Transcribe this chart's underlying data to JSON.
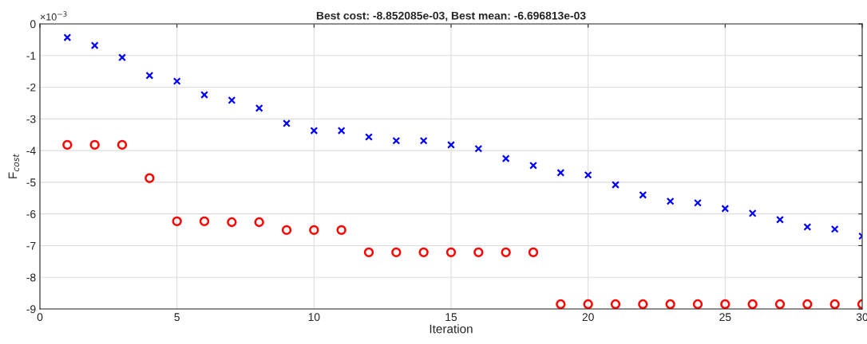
{
  "chart_data": {
    "type": "scatter",
    "title": "Best cost: -8.852085e-03, Best mean: -6.696813e-03",
    "xlabel": "Iteration",
    "ylabel": "F$_{cost}$",
    "annotations": [
      "×10$^{−3}$"
    ],
    "x": [
      1,
      2,
      3,
      4,
      5,
      6,
      7,
      8,
      9,
      10,
      11,
      12,
      13,
      14,
      15,
      16,
      17,
      18,
      19,
      20,
      21,
      22,
      23,
      24,
      25,
      26,
      27,
      28,
      29,
      30
    ],
    "series": [
      {
        "color": "#0000ff",
        "marker": "cross",
        "values": [
          -0.43,
          -0.68,
          -1.06,
          -1.63,
          -1.81,
          -2.24,
          -2.41,
          -2.66,
          -3.14,
          -3.37,
          -3.37,
          -3.57,
          -3.69,
          -3.69,
          -3.82,
          -3.94,
          -4.25,
          -4.47,
          -4.7,
          -4.77,
          -5.08,
          -5.4,
          -5.6,
          -5.65,
          -5.83,
          -5.98,
          -6.18,
          -6.41,
          -6.48,
          -6.7
        ]
      },
      {
        "color": "#ff0000",
        "marker": "circle",
        "values": [
          -3.82,
          -3.82,
          -3.82,
          -4.87,
          -6.23,
          -6.23,
          -6.26,
          -6.26,
          -6.51,
          -6.51,
          -6.51,
          -7.21,
          -7.21,
          -7.21,
          -7.21,
          -7.21,
          -7.21,
          -7.21,
          -8.85,
          -8.85,
          -8.85,
          -8.85,
          -8.85,
          -8.85,
          -8.85,
          -8.85,
          -8.85,
          -8.85,
          -8.85,
          -8.85
        ]
      }
    ],
    "xlim": [
      0,
      30
    ],
    "xticks": [
      0,
      5,
      10,
      15,
      20,
      25,
      30
    ],
    "ylim": [
      -9,
      0
    ],
    "yticks": [
      -9,
      -8,
      -7,
      -6,
      -5,
      -4,
      -3,
      -2,
      -1,
      0
    ],
    "grid": true,
    "legend": false
  }
}
